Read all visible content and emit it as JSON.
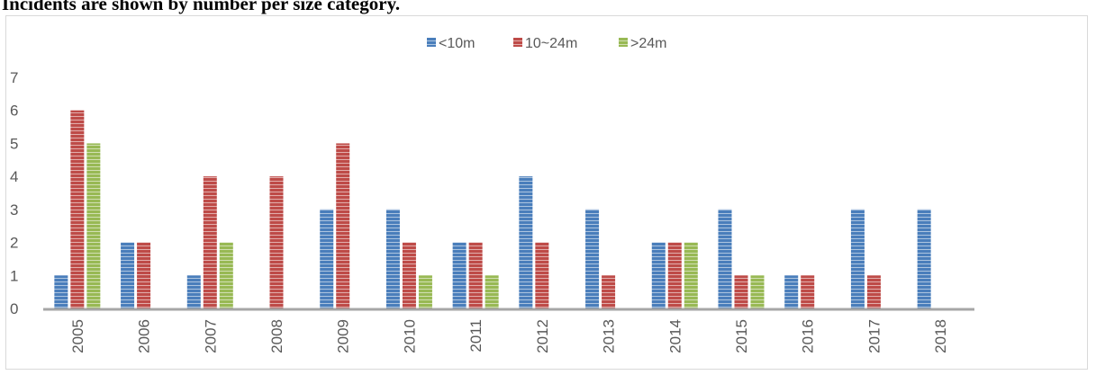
{
  "caption": "Incidents are shown by number per size category.",
  "chart_data": {
    "type": "bar",
    "title": "",
    "xlabel": "",
    "ylabel": "",
    "categories": [
      "2005",
      "2006",
      "2007",
      "2008",
      "2009",
      "2010",
      "2011",
      "2012",
      "2013",
      "2014",
      "2015",
      "2016",
      "2017",
      "2018"
    ],
    "series": [
      {
        "name": "<10m",
        "color": "#4a7ebb",
        "values": [
          1,
          2,
          1,
          0,
          3,
          3,
          2,
          4,
          3,
          2,
          3,
          1,
          3,
          3
        ]
      },
      {
        "name": "10~24m",
        "color": "#be4b48",
        "values": [
          6,
          2,
          4,
          4,
          5,
          2,
          2,
          2,
          1,
          2,
          1,
          1,
          1,
          0
        ]
      },
      {
        "name": ">24m",
        "color": "#98b954",
        "values": [
          5,
          0,
          2,
          0,
          0,
          1,
          1,
          0,
          0,
          2,
          1,
          0,
          0,
          0
        ]
      }
    ],
    "ylim": [
      0,
      7
    ],
    "yticks": [
      0,
      1,
      2,
      3,
      4,
      5,
      6,
      7
    ],
    "legend_position": "top",
    "grid": false,
    "bar_pattern": "horizontal-stripes"
  }
}
